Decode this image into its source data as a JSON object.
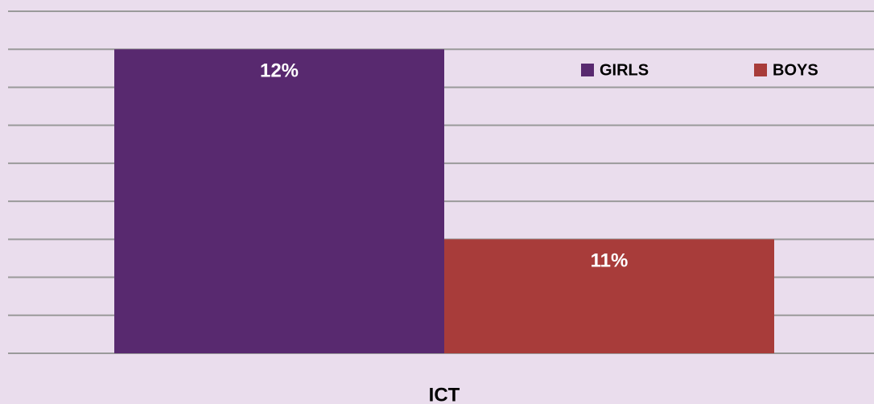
{
  "chart_data": {
    "type": "bar",
    "categories": [
      "ICT"
    ],
    "series": [
      {
        "name": "GIRLS",
        "color": "#58296f",
        "values": [
          12
        ],
        "value_labels": [
          "12%"
        ]
      },
      {
        "name": "BOYS",
        "color": "#a83c3a",
        "values": [
          11
        ],
        "value_labels": [
          "11%"
        ]
      }
    ],
    "ylim": [
      10.4,
      12.2
    ],
    "yticks": [
      10.4,
      10.6,
      10.8,
      11.0,
      11.2,
      11.4,
      11.6,
      11.8,
      12.0,
      12.2
    ],
    "grid": true,
    "legend": "top-right"
  }
}
